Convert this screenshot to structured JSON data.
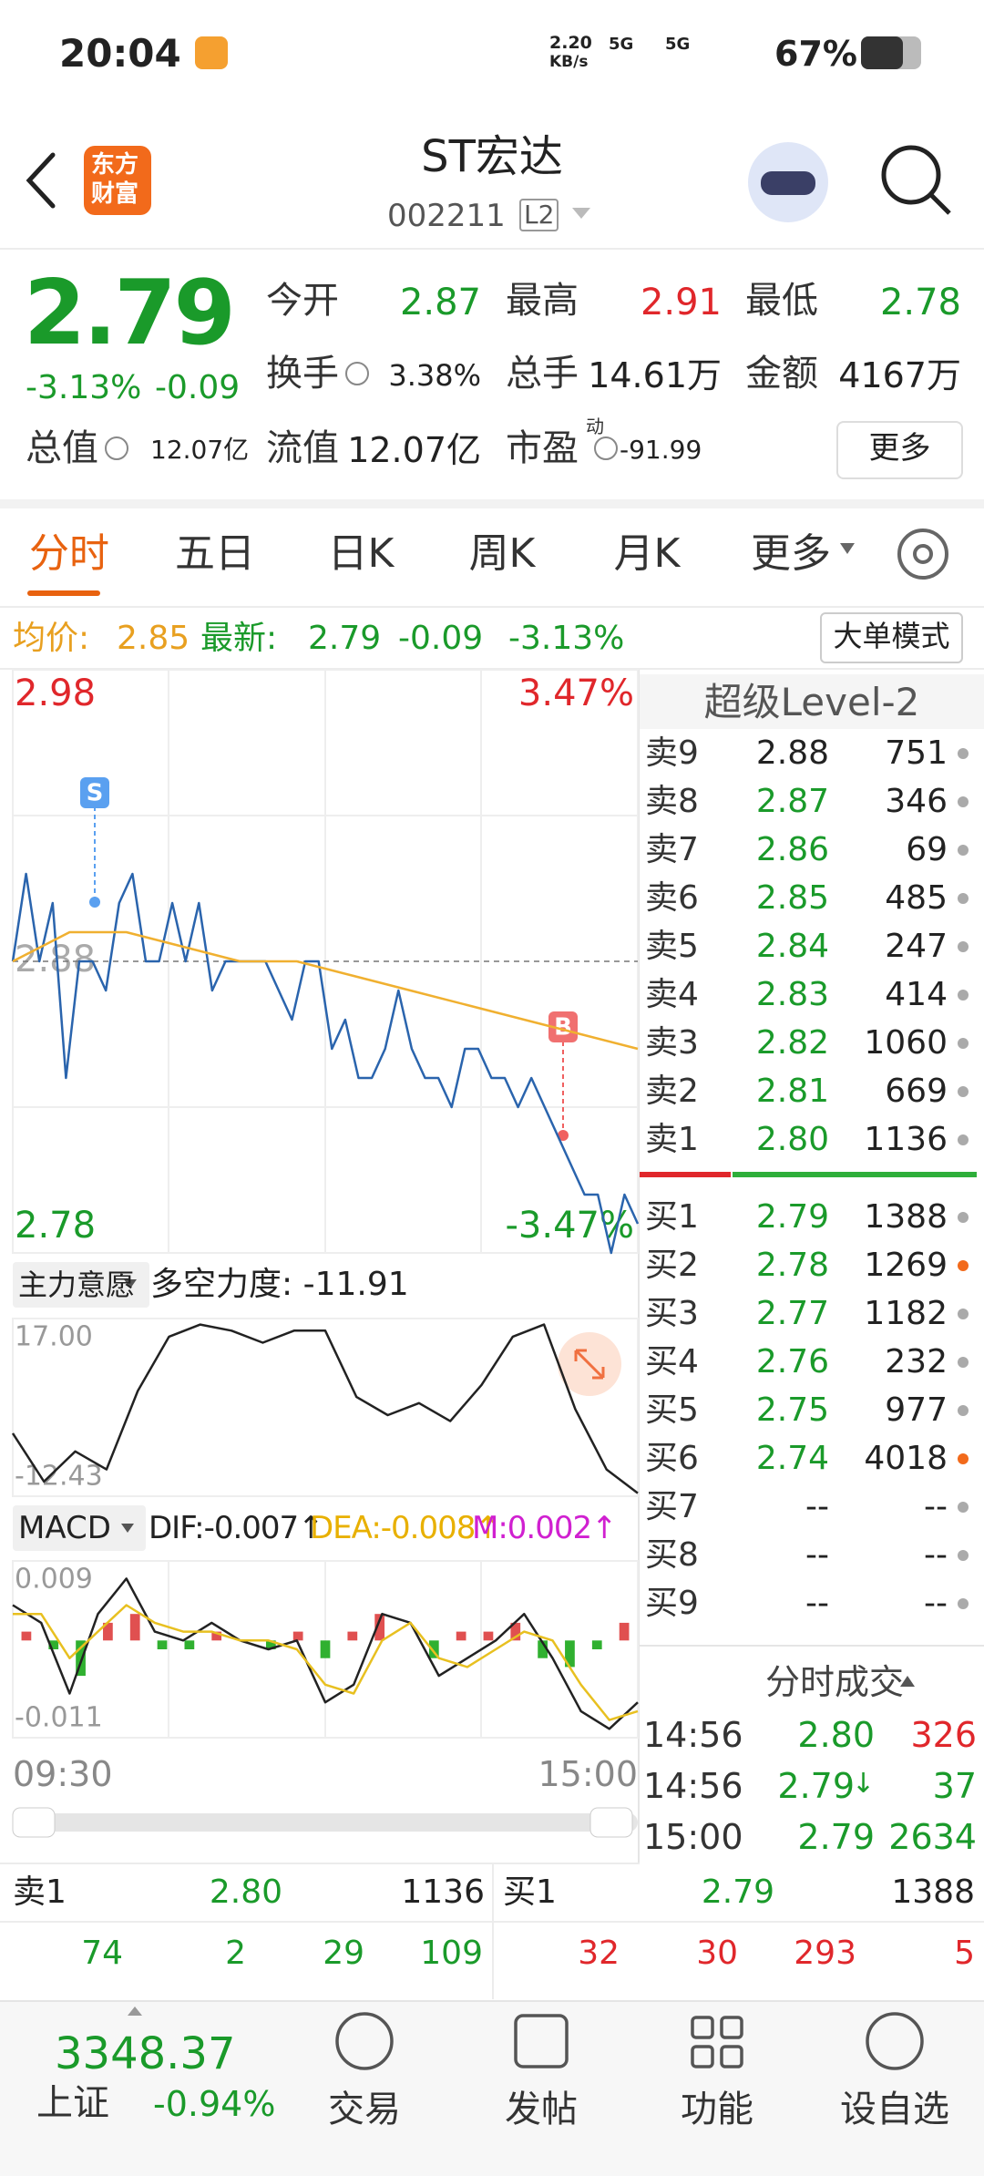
{
  "status_bar": {
    "time": "20:04",
    "net_speed": "2.20",
    "net_unit": "KB/s",
    "signal_1": "5G",
    "signal_2": "5G",
    "battery": "67%"
  },
  "header": {
    "logo_line_1": "东方",
    "logo_line_2": "财富",
    "title": "ST宏达",
    "code": "002211",
    "level": "L2"
  },
  "quote": {
    "price": "2.79",
    "change_pct": "-3.13%",
    "change": "-0.09",
    "more": "更多",
    "stats": [
      {
        "label": "今开",
        "value": "2.87",
        "color": "#1a9a2a"
      },
      {
        "label": "最高",
        "value": "2.91",
        "color": "#e0272b"
      },
      {
        "label": "最低",
        "value": "2.78",
        "color": "#1a9a2a"
      },
      {
        "label": "换手",
        "value": "3.38%",
        "info": true
      },
      {
        "label": "总手",
        "value": "14.61万"
      },
      {
        "label": "金额",
        "value": "4167万"
      },
      {
        "label": "总值",
        "value": "12.07亿",
        "info": true
      },
      {
        "label": "流值",
        "value": "12.07亿"
      },
      {
        "label": "市盈",
        "label_sup": "动",
        "value": "-91.99",
        "info": true
      }
    ]
  },
  "tabs": [
    "分时",
    "五日",
    "日K",
    "周K",
    "月K",
    "更多"
  ],
  "info": {
    "avg_label": "均价:",
    "avg": "2.85",
    "last_label": "最新:",
    "last": "2.79",
    "change": "-0.09",
    "change_pct": "-3.13%",
    "mode_button": "大单模式"
  },
  "chart_data": [
    {
      "type": "line",
      "ylim": [
        2.78,
        2.98
      ],
      "yticks": [
        2.78,
        2.88,
        2.98
      ],
      "ytick_colors": [
        "#1a9a2a",
        "#aaaaaa",
        "#e0272b"
      ],
      "y2lim": [
        -3.47,
        3.47
      ],
      "y2ticks": [
        {
          "value": -3.47,
          "label": "-3.47%"
        },
        {
          "value": 3.47,
          "label": "3.47%"
        }
      ],
      "y2tick_colors": [
        "#1a9a2a",
        "#e0272b"
      ],
      "markers": [
        "S",
        "B"
      ],
      "series": [
        {
          "color": "#2a64ad",
          "values": [
            2.88,
            2.91,
            2.88,
            2.9,
            2.84,
            2.88,
            2.88,
            2.87,
            2.9,
            2.91,
            2.88,
            2.88,
            2.9,
            2.88,
            2.9,
            2.87,
            2.88,
            2.88,
            2.88,
            2.88,
            2.87,
            2.86,
            2.88,
            2.88,
            2.85,
            2.86,
            2.84,
            2.84,
            2.85,
            2.87,
            2.85,
            2.84,
            2.84,
            2.83,
            2.85,
            2.85,
            2.84,
            2.84,
            2.83,
            2.84,
            2.83,
            2.82,
            2.81,
            2.8,
            2.8,
            2.78,
            2.8,
            2.79
          ]
        },
        {
          "color": "#f0b030",
          "values": [
            2.88,
            2.89,
            2.89,
            2.885,
            2.88,
            2.88,
            2.875,
            2.87,
            2.865,
            2.86,
            2.855,
            2.85
          ]
        }
      ]
    },
    {
      "type": "line",
      "title": "主力意愿",
      "indicator": "多空力度: -11.91",
      "ylim": [
        -12.43,
        17
      ],
      "yticks": [
        -12.43,
        {
          "value": 17,
          "label": "17.00"
        }
      ],
      "series": [
        {
          "color": "#222222",
          "values": [
            -2,
            -10,
            -5,
            -8,
            5,
            14,
            16,
            15,
            13,
            15,
            15,
            4,
            1,
            3,
            0,
            6,
            14,
            16,
            2,
            -8,
            -11.91
          ]
        }
      ]
    },
    {
      "type": "line",
      "title": "MACD",
      "dif_label": "DIF:-0.007↑",
      "dea_label": "DEA:-0.008↑",
      "m_label": "M:0.002↑",
      "ylim": [
        -0.011,
        0.009
      ],
      "yticks": [
        -0.011,
        0.009
      ],
      "series": [
        {
          "type": "bar",
          "up_color": "#e05050",
          "down_color": "#30b030",
          "values": [
            0.001,
            -0.001,
            -0.004,
            0.002,
            0.003,
            -0.001,
            -0.001,
            0.001,
            0,
            -0.001,
            0.001,
            -0.002,
            0.001,
            0.003,
            0,
            -0.002,
            0.001,
            0.001,
            0.002,
            -0.002,
            -0.003,
            -0.001,
            0.002
          ]
        },
        {
          "color": "#222222",
          "values": [
            0.004,
            0.002,
            -0.006,
            0.003,
            0.007,
            0.001,
            0,
            0.002,
            0,
            -0.001,
            0,
            -0.007,
            -0.005,
            0.003,
            0.002,
            -0.004,
            -0.002,
            0,
            0.003,
            -0.002,
            -0.008,
            -0.01,
            -0.007
          ]
        },
        {
          "color": "#e8c020",
          "values": [
            0.003,
            0.003,
            -0.002,
            0.001,
            0.004,
            0.002,
            0.001,
            0.001,
            0,
            0,
            -0.001,
            -0.005,
            -0.006,
            0,
            0.002,
            -0.002,
            -0.003,
            -0.001,
            0.001,
            0,
            -0.005,
            -0.009,
            -0.008
          ]
        }
      ]
    }
  ],
  "time_axis": [
    "09:30",
    "15:00"
  ],
  "order_book": {
    "title": "超级Level-2",
    "asks": [
      {
        "label": "卖9",
        "price": "2.88",
        "volume": "751",
        "price_color": "#222222",
        "dot_color": "#aaaaaa"
      },
      {
        "label": "卖8",
        "price": "2.87",
        "volume": "346",
        "price_color": "#1a9a2a",
        "dot_color": "#aaaaaa"
      },
      {
        "label": "卖7",
        "price": "2.86",
        "volume": "69",
        "price_color": "#1a9a2a",
        "dot_color": "#aaaaaa"
      },
      {
        "label": "卖6",
        "price": "2.85",
        "volume": "485",
        "price_color": "#1a9a2a",
        "dot_color": "#aaaaaa"
      },
      {
        "label": "卖5",
        "price": "2.84",
        "volume": "247",
        "price_color": "#1a9a2a",
        "dot_color": "#aaaaaa"
      },
      {
        "label": "卖4",
        "price": "2.83",
        "volume": "414",
        "price_color": "#1a9a2a",
        "dot_color": "#aaaaaa"
      },
      {
        "label": "卖3",
        "price": "2.82",
        "volume": "1060",
        "price_color": "#1a9a2a",
        "dot_color": "#aaaaaa"
      },
      {
        "label": "卖2",
        "price": "2.81",
        "volume": "669",
        "price_color": "#1a9a2a",
        "dot_color": "#aaaaaa"
      },
      {
        "label": "卖1",
        "price": "2.80",
        "volume": "1136",
        "price_color": "#1a9a2a",
        "dot_color": "#aaaaaa"
      }
    ],
    "bids": [
      {
        "label": "买1",
        "price": "2.79",
        "volume": "1388",
        "price_color": "#1a9a2a",
        "dot_color": "#aaaaaa"
      },
      {
        "label": "买2",
        "price": "2.78",
        "volume": "1269",
        "price_color": "#1a9a2a",
        "dot_color": "#f26a1b"
      },
      {
        "label": "买3",
        "price": "2.77",
        "volume": "1182",
        "price_color": "#1a9a2a",
        "dot_color": "#aaaaaa"
      },
      {
        "label": "买4",
        "price": "2.76",
        "volume": "232",
        "price_color": "#1a9a2a",
        "dot_color": "#aaaaaa"
      },
      {
        "label": "买5",
        "price": "2.75",
        "volume": "977",
        "price_color": "#1a9a2a",
        "dot_color": "#aaaaaa"
      },
      {
        "label": "买6",
        "price": "2.74",
        "volume": "4018",
        "price_color": "#1a9a2a",
        "dot_color": "#f26a1b"
      },
      {
        "label": "买7",
        "price": "--",
        "volume": "--",
        "price_color": "#222222",
        "dot_color": "#aaaaaa"
      },
      {
        "label": "买8",
        "price": "--",
        "volume": "--",
        "price_color": "#222222",
        "dot_color": "#aaaaaa"
      },
      {
        "label": "买9",
        "price": "--",
        "volume": "--",
        "price_color": "#222222",
        "dot_color": "#aaaaaa"
      }
    ]
  },
  "trades": {
    "title": "分时成交",
    "rows": [
      {
        "time": "14:56",
        "price": "2.80",
        "volume": "326",
        "volume_color": "#e0272b"
      },
      {
        "time": "14:56",
        "price": "2.79",
        "arrow": "↓",
        "volume": "37",
        "volume_color": "#1a9a2a"
      },
      {
        "time": "15:00",
        "price": "2.79",
        "volume": "2634",
        "volume_color": "#1a9a2a"
      }
    ]
  },
  "depth": {
    "ask": {
      "label": "卖1",
      "price": "2.80",
      "volume": "1136"
    },
    "bid": {
      "label": "买1",
      "price": "2.79",
      "volume": "1388"
    },
    "ask_orders": [
      "74",
      "2",
      "29",
      "109"
    ],
    "bid_orders": [
      "32",
      "30",
      "293",
      "5"
    ]
  },
  "bottom_nav": {
    "index_value": "3348.37",
    "index_name": "上证",
    "index_change": "-0.94%",
    "items": [
      "交易",
      "发帖",
      "功能",
      "设自选"
    ]
  }
}
